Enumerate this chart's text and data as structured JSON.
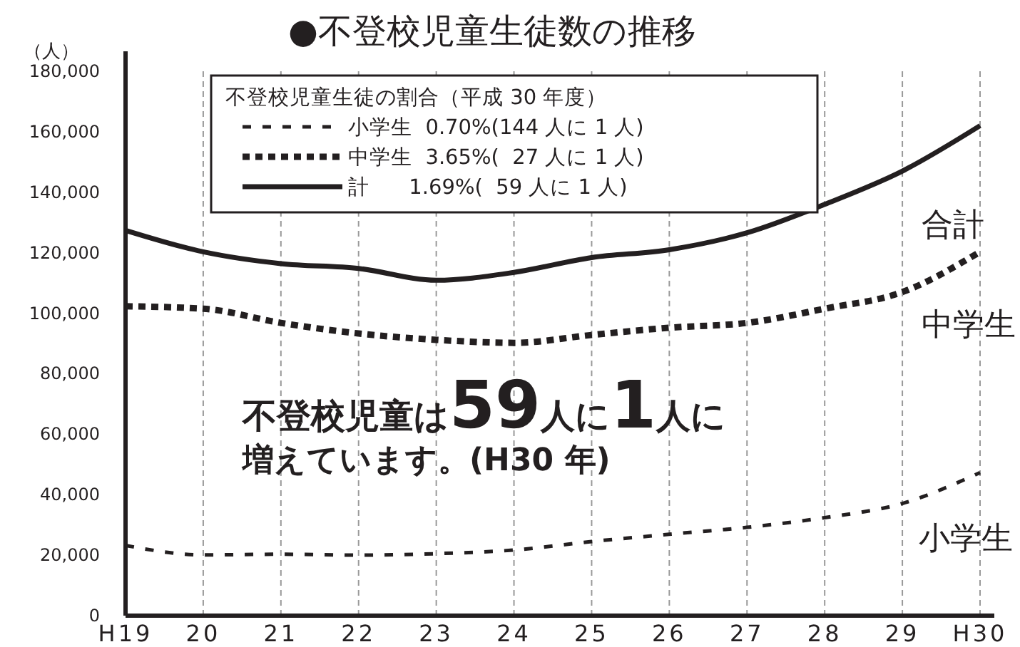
{
  "chart_data": {
    "type": "line",
    "title": "●不登校児童生徒数の推移",
    "ylabel": "（人）",
    "legend_title": "不登校児童生徒の割合（平成 30 年度）",
    "categories": [
      "H19",
      "20",
      "21",
      "22",
      "23",
      "24",
      "25",
      "26",
      "27",
      "28",
      "29",
      "H30"
    ],
    "series": [
      {
        "name": "小学生  0.70%(144 人に 1 人)",
        "color": "#231f20",
        "line_style": "dashed",
        "values": [
          23200,
          20100,
          20300,
          20000,
          20500,
          21700,
          24500,
          26900,
          29200,
          32400,
          37100,
          47300
        ]
      },
      {
        "name": "中学生  3.65%(  27 人に 1 人)",
        "color": "#231f20",
        "line_style": "dotted",
        "values": [
          102300,
          101500,
          96800,
          93300,
          91200,
          90200,
          92800,
          95200,
          96800,
          101500,
          107000,
          120300
        ]
      },
      {
        "name": "計      1.69%(  59 人に 1 人)",
        "color": "#231f20",
        "line_style": "solid",
        "values": [
          127400,
          120300,
          116400,
          114800,
          110900,
          113500,
          118400,
          121000,
          126600,
          136000,
          147000,
          162000
        ]
      }
    ],
    "ylim": [
      0,
      180000
    ],
    "yticks": [
      0,
      {
        "value": 20000,
        "label": "20,000"
      },
      {
        "value": 40000,
        "label": "40,000"
      },
      {
        "value": 60000,
        "label": "60,000"
      },
      {
        "value": 80000,
        "label": "80,000"
      },
      {
        "value": 100000,
        "label": "100,000"
      },
      {
        "value": 120000,
        "label": "120,000"
      },
      {
        "value": 140000,
        "label": "140,000"
      },
      {
        "value": 160000,
        "label": "160,000"
      },
      {
        "value": 180000,
        "label": "180,000"
      }
    ],
    "grid": "x",
    "legend": "top",
    "marker": "none",
    "annotations": [
      "合計",
      "中学生",
      "小学生",
      "不登校児童は59人に1人に",
      "増えています。(H30 年)"
    ]
  }
}
